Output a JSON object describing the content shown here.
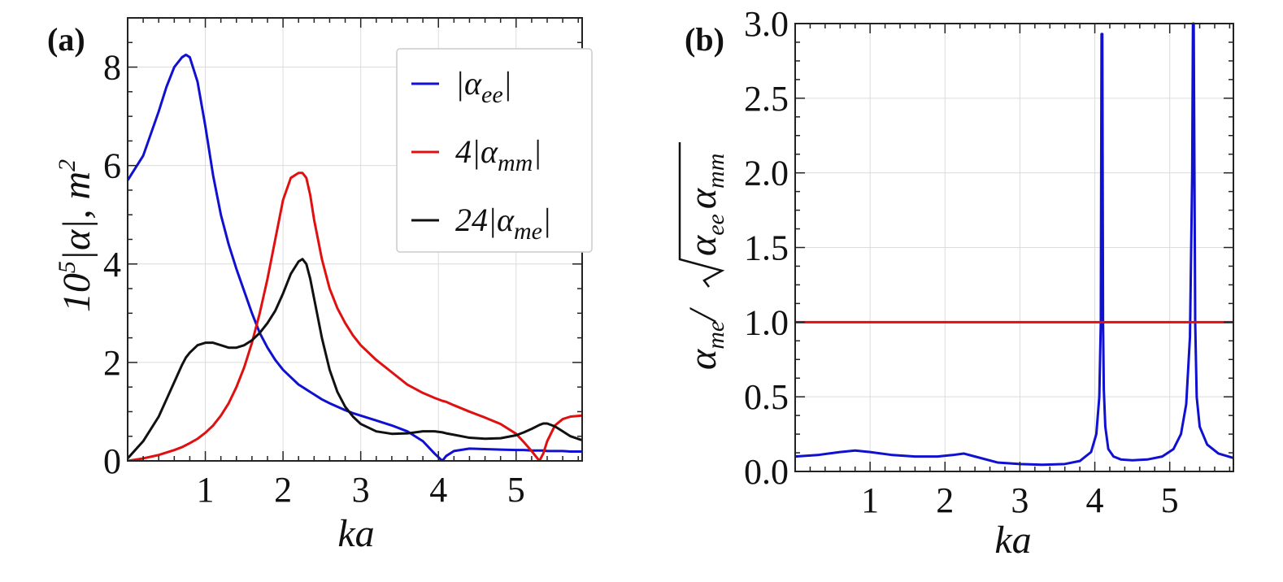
{
  "chart_data": [
    {
      "type": "line",
      "panel_label": "(a)",
      "xlabel": "ka",
      "ylabel": "10⁵|α|, m²",
      "ylabel_parts": {
        "prefix": "10",
        "sup": "5",
        "middle": "|α|,  m",
        "sup2": "2"
      },
      "xlim": [
        0,
        5.85
      ],
      "ylim": [
        0,
        9
      ],
      "xticks": [
        1,
        2,
        3,
        4,
        5
      ],
      "yticks": [
        0,
        2,
        4,
        6,
        8
      ],
      "grid": true,
      "legend_position": "top-right",
      "x": [
        0,
        0.2,
        0.4,
        0.5,
        0.6,
        0.7,
        0.75,
        0.8,
        0.9,
        1.0,
        1.1,
        1.2,
        1.3,
        1.4,
        1.5,
        1.6,
        1.7,
        1.8,
        1.9,
        2.0,
        2.1,
        2.2,
        2.25,
        2.3,
        2.35,
        2.4,
        2.5,
        2.6,
        2.7,
        2.8,
        2.9,
        3.0,
        3.2,
        3.4,
        3.6,
        3.8,
        3.95,
        4.05,
        4.1,
        4.2,
        4.4,
        4.6,
        4.8,
        5.0,
        5.1,
        5.2,
        5.3,
        5.35,
        5.4,
        5.5,
        5.6,
        5.7,
        5.85
      ],
      "series": [
        {
          "name": "|α_ee|",
          "label_parts": [
            "|α",
            "ee",
            "|"
          ],
          "color": "#1010d0",
          "values": [
            5.7,
            6.2,
            7.1,
            7.6,
            8.0,
            8.2,
            8.25,
            8.2,
            7.7,
            6.8,
            5.8,
            5.0,
            4.4,
            3.9,
            3.45,
            3.0,
            2.6,
            2.3,
            2.05,
            1.85,
            1.7,
            1.55,
            1.5,
            1.45,
            1.4,
            1.35,
            1.25,
            1.17,
            1.1,
            1.03,
            0.97,
            0.92,
            0.82,
            0.72,
            0.6,
            0.4,
            0.15,
            0.0,
            0.1,
            0.2,
            0.25,
            0.24,
            0.23,
            0.22,
            0.22,
            0.21,
            0.21,
            0.21,
            0.2,
            0.2,
            0.2,
            0.19,
            0.19
          ]
        },
        {
          "name": "4|α_mm|",
          "label_parts": [
            "4|α",
            "mm",
            "|"
          ],
          "color": "#e01010",
          "values": [
            0.0,
            0.05,
            0.12,
            0.17,
            0.22,
            0.28,
            0.32,
            0.36,
            0.45,
            0.57,
            0.72,
            0.92,
            1.17,
            1.5,
            1.9,
            2.4,
            3.0,
            3.7,
            4.5,
            5.3,
            5.75,
            5.85,
            5.85,
            5.75,
            5.4,
            4.9,
            4.1,
            3.5,
            3.1,
            2.8,
            2.55,
            2.35,
            2.05,
            1.8,
            1.55,
            1.38,
            1.28,
            1.22,
            1.2,
            1.13,
            1.0,
            0.88,
            0.75,
            0.55,
            0.38,
            0.2,
            0.0,
            0.15,
            0.4,
            0.72,
            0.85,
            0.9,
            0.92
          ]
        },
        {
          "name": "24|α_me|",
          "label_parts": [
            "24|α",
            "me",
            "|"
          ],
          "color": "#111111",
          "values": [
            0.05,
            0.4,
            0.9,
            1.25,
            1.6,
            1.95,
            2.1,
            2.2,
            2.35,
            2.4,
            2.4,
            2.35,
            2.3,
            2.3,
            2.35,
            2.45,
            2.6,
            2.8,
            3.05,
            3.4,
            3.8,
            4.05,
            4.1,
            4.0,
            3.7,
            3.3,
            2.5,
            1.85,
            1.4,
            1.1,
            0.9,
            0.75,
            0.6,
            0.55,
            0.56,
            0.6,
            0.6,
            0.58,
            0.56,
            0.53,
            0.47,
            0.45,
            0.46,
            0.52,
            0.58,
            0.65,
            0.73,
            0.76,
            0.76,
            0.7,
            0.6,
            0.5,
            0.42
          ]
        }
      ]
    },
    {
      "type": "line",
      "panel_label": "(b)",
      "xlabel": "ka",
      "ylabel": "α_me/√(α_ee α_mm)",
      "ylabel_parts": {
        "num": "α",
        "num_sub": "me",
        "slash": "/",
        "d1": "α",
        "d1_sub": "ee",
        "d2": "α",
        "d2_sub": "mm"
      },
      "xlim": [
        0,
        5.85
      ],
      "ylim": [
        0,
        3.0
      ],
      "xticks": [
        1,
        2,
        3,
        4,
        5
      ],
      "yticks": [
        0.0,
        0.5,
        1.0,
        1.5,
        2.0,
        2.5,
        3.0
      ],
      "ytick_labels": [
        "0.0",
        "0.5",
        "1.0",
        "1.5",
        "2.0",
        "2.5",
        "3.0"
      ],
      "grid": true,
      "series": [
        {
          "name": "ratio",
          "color": "#1010d0",
          "x": [
            0,
            0.3,
            0.6,
            0.8,
            1.0,
            1.3,
            1.6,
            1.9,
            2.1,
            2.25,
            2.4,
            2.7,
            3.0,
            3.3,
            3.6,
            3.8,
            3.95,
            4.02,
            4.06,
            4.08,
            4.09,
            4.1,
            4.11,
            4.12,
            4.14,
            4.18,
            4.25,
            4.35,
            4.5,
            4.7,
            4.9,
            5.05,
            5.15,
            5.22,
            5.27,
            5.3,
            5.31,
            5.32,
            5.33,
            5.34,
            5.36,
            5.4,
            5.5,
            5.65,
            5.85
          ],
          "values": [
            0.1,
            0.11,
            0.13,
            0.14,
            0.13,
            0.11,
            0.1,
            0.1,
            0.11,
            0.12,
            0.1,
            0.06,
            0.05,
            0.045,
            0.05,
            0.07,
            0.13,
            0.25,
            0.5,
            1.0,
            2.93,
            2.93,
            1.0,
            0.55,
            0.3,
            0.15,
            0.1,
            0.08,
            0.075,
            0.08,
            0.1,
            0.15,
            0.25,
            0.45,
            0.9,
            2.0,
            3.0,
            3.0,
            2.0,
            1.0,
            0.5,
            0.3,
            0.18,
            0.12,
            0.09
          ]
        },
        {
          "name": "unity",
          "color": "#e01010",
          "x": [
            0,
            5.85
          ],
          "values": [
            1.0,
            1.0
          ]
        }
      ]
    }
  ]
}
